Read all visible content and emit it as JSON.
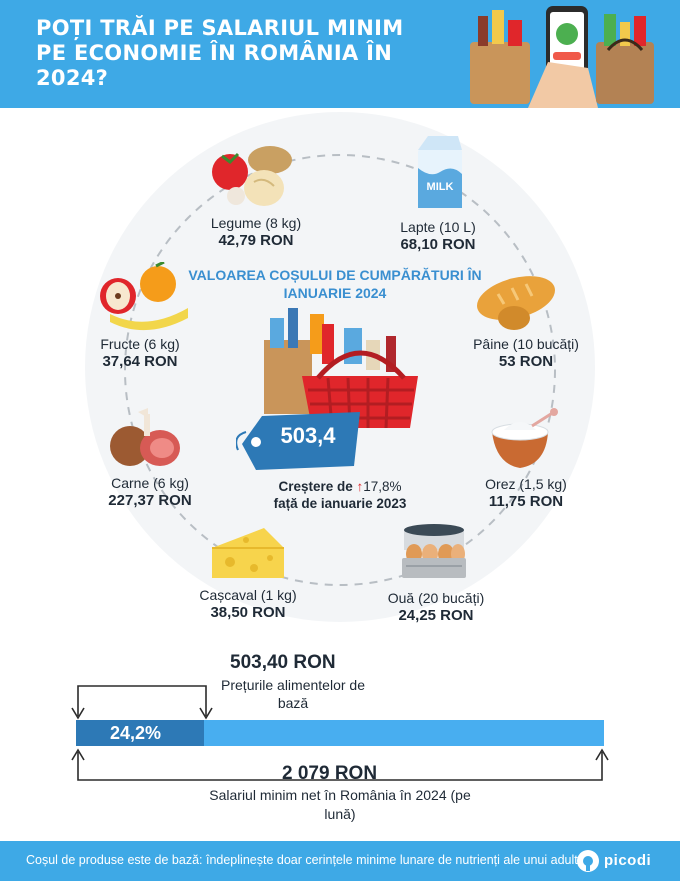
{
  "header": {
    "title": "POȚI TRĂI PE SALARIUL MINIM PE ECONOMIE ÎN ROMÂNIA ÎN 2024?"
  },
  "basket": {
    "title": "VALOAREA COȘULUI DE CUMPĂRĂTURI ÎN IANUARIE 2024",
    "tag_value": "503,4",
    "increase_label": "Creștere de",
    "increase_value": "17,8%",
    "increase_suffix": "față de ianuarie 2023"
  },
  "items": {
    "legume": {
      "name": "Legume (8 kg)",
      "price": "42,79 RON",
      "icon": "vegetables-icon"
    },
    "lapte": {
      "name": "Lapte (10 L)",
      "price": "68,10 RON",
      "icon": "milk-icon",
      "icon_text": "MILK"
    },
    "fructe": {
      "name": "Fructe (6 kg)",
      "price": "37,64 RON",
      "icon": "fruits-icon"
    },
    "paine": {
      "name": "Pâine (10 bucăți)",
      "price": "53 RON",
      "icon": "bread-icon"
    },
    "carne": {
      "name": "Carne (6 kg)",
      "price": "227,37 RON",
      "icon": "meat-icon"
    },
    "orez": {
      "name": "Orez (1,5 kg)",
      "price": "11,75 RON",
      "icon": "rice-icon"
    },
    "cascaval": {
      "name": "Cașcaval (1 kg)",
      "price": "38,50 RON",
      "icon": "cheese-icon"
    },
    "oua": {
      "name": "Ouă (20 bucăți)",
      "price": "24,25 RON",
      "icon": "eggs-icon"
    }
  },
  "comparison": {
    "basket_amount": "503,40 RON",
    "basket_label": "Prețurile alimentelor de bază",
    "percent_label": "24,2%",
    "percent_value": 0.242,
    "salary_amount": "2 079 RON",
    "salary_label": "Salariul minim net în România în 2024 (pe lună)"
  },
  "footer": {
    "note": "Coșul de produse este de bază: îndeplinește doar cerințele minime lunare de nutrienți ale unui adult.",
    "brand": "picodi"
  },
  "colors": {
    "primary": "#3ea9e6",
    "dark_blue": "#2d79b6",
    "accent_red": "#e0262b"
  }
}
